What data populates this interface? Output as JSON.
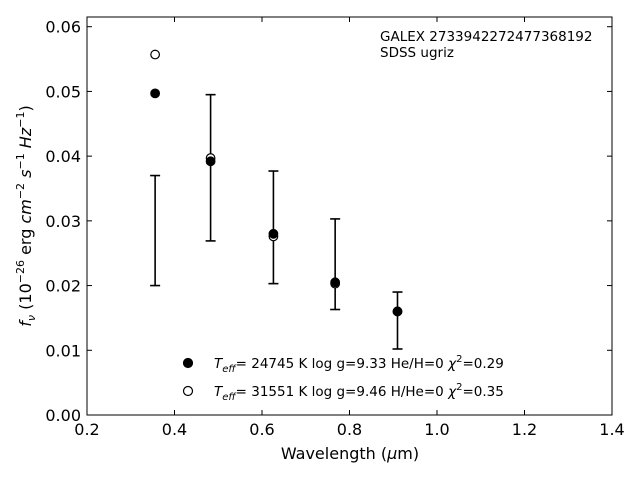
{
  "chart_data": {
    "type": "scatter",
    "title": "",
    "xlabel": "Wavelength (μm)",
    "ylabel": "f_ν (10^-26 erg cm^-2 s^-1 Hz^-1)",
    "xlim": [
      0.2,
      1.4
    ],
    "ylim": [
      0.0,
      0.0615
    ],
    "x_ticks": [
      0.2,
      0.4,
      0.6,
      0.8,
      1.0,
      1.2,
      1.4
    ],
    "x_tick_labels": [
      "0.2",
      "0.4",
      "0.6",
      "0.8",
      "1.0",
      "1.2",
      "1.4"
    ],
    "y_ticks": [
      0.0,
      0.01,
      0.02,
      0.03,
      0.04,
      0.05,
      0.06
    ],
    "y_tick_labels": [
      "0.00",
      "0.01",
      "0.02",
      "0.03",
      "0.04",
      "0.05",
      "0.06"
    ],
    "grid": false,
    "annotations": [
      "GALEX 2733942272477368192",
      "SDSS ugriz"
    ],
    "observed": {
      "x": [
        0.3557,
        0.4825,
        0.6261,
        0.7672,
        0.9097
      ],
      "y": [
        0.0285,
        0.0382,
        0.029,
        0.0233,
        0.0146
      ],
      "yerr": [
        0.0085,
        0.0113,
        0.0087,
        0.007,
        0.0044
      ]
    },
    "series": [
      {
        "name": "T_eff= 24745 K  log g=9.33  He/H=0  χ²=0.29",
        "marker": "filled-circle",
        "x": [
          0.3557,
          0.4825,
          0.6261,
          0.7672,
          0.9097
        ],
        "y": [
          0.0497,
          0.0392,
          0.028,
          0.0205,
          0.016
        ]
      },
      {
        "name": "T_eff= 31551 K  log g=9.46  H/He=0  χ²=0.35",
        "marker": "open-circle",
        "x": [
          0.3557,
          0.4825,
          0.6261,
          0.7672,
          0.9097
        ],
        "y": [
          0.0557,
          0.0397,
          0.0276,
          0.0203,
          0.016
        ]
      }
    ],
    "legend_position": "bottom-center",
    "marker_color": "#000000"
  }
}
